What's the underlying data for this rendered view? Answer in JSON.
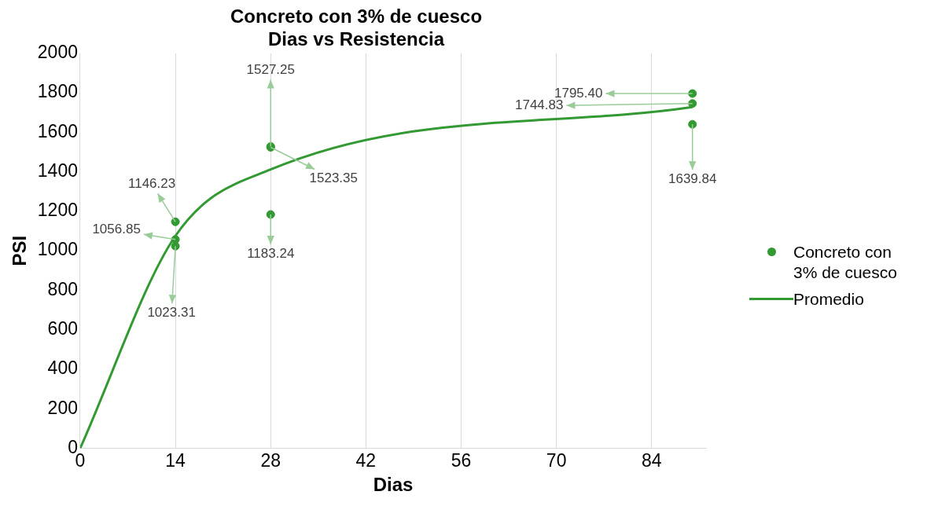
{
  "chart_data": {
    "type": "scatter",
    "title": "Concreto con 3% de cuesco\nDias vs Resistencia",
    "xlabel": "Dias",
    "ylabel": "PSI",
    "xlim": [
      0,
      92
    ],
    "xticks": [
      0,
      14,
      28,
      42,
      56,
      70,
      84
    ],
    "ylim": [
      0,
      2000
    ],
    "yticks": [
      0,
      200,
      400,
      600,
      800,
      1000,
      1200,
      1400,
      1600,
      1800,
      2000
    ],
    "grid": "x",
    "legend": "right",
    "marker": "circle",
    "series": [
      {
        "name": "Concreto con 3% de cuesco",
        "type": "scatter",
        "color": "#339933",
        "x": [
          14,
          14,
          14,
          28,
          28,
          28,
          90,
          90,
          90
        ],
        "values": [
          1146.23,
          1056.85,
          1023.31,
          1527.25,
          1523.35,
          1183.24,
          1795.4,
          1744.83,
          1639.84
        ],
        "value_labels": [
          "1146.23",
          "1056.85",
          "1023.31",
          "1527.25",
          "1523.35",
          "1183.24",
          "1795.40",
          "1744.83",
          "1639.84"
        ]
      },
      {
        "name": "Promedio",
        "type": "line",
        "color": "#339933",
        "marker": "none",
        "x": [
          0,
          14,
          28,
          90
        ],
        "values": [
          0,
          1075,
          1411,
          1727
        ]
      }
    ]
  }
}
